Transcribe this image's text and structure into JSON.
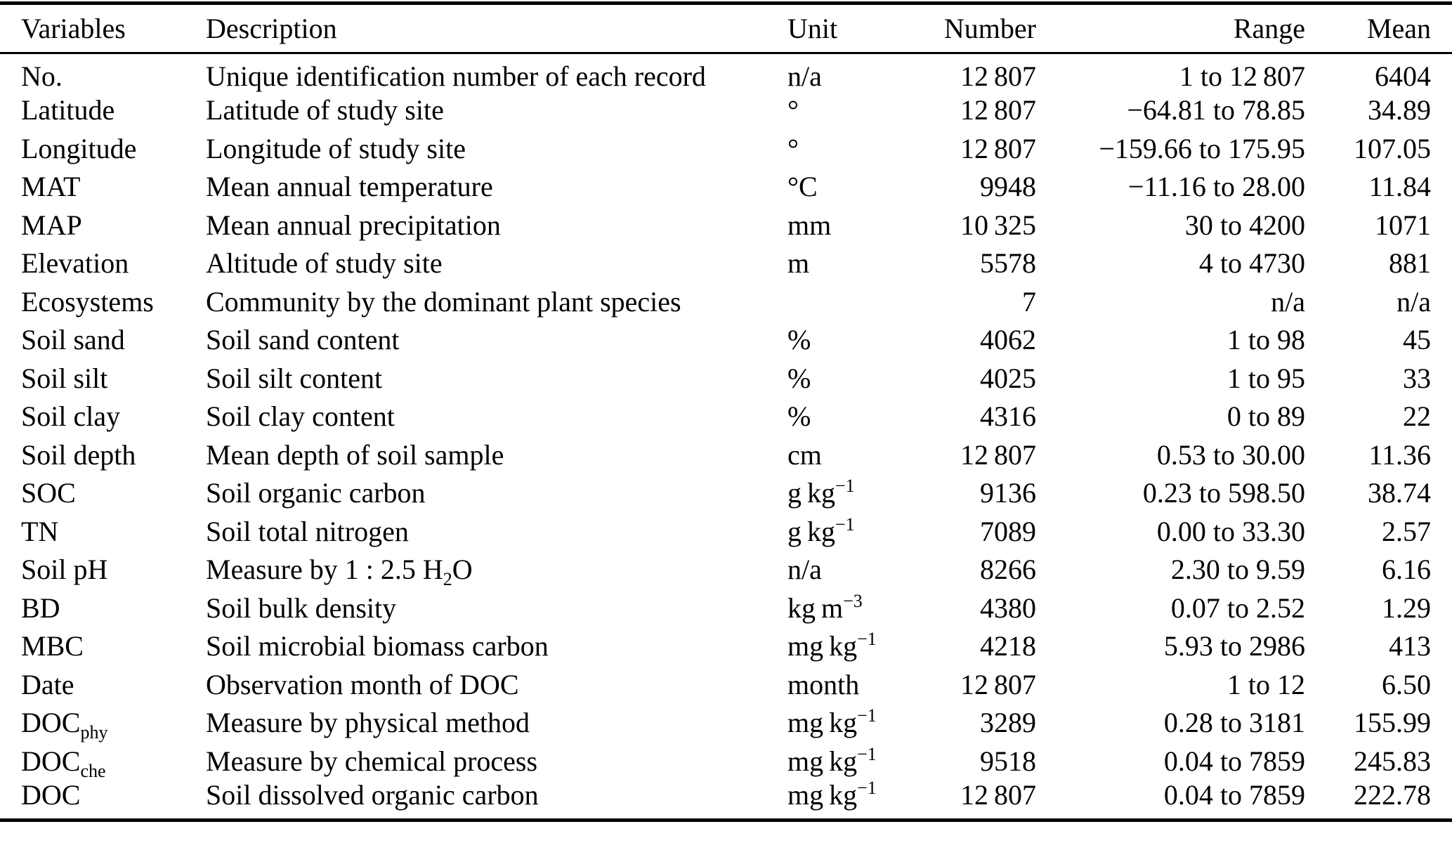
{
  "table": {
    "columns": [
      {
        "label": "Variables",
        "align": "left"
      },
      {
        "label": "Description",
        "align": "left"
      },
      {
        "label": "Unit",
        "align": "left"
      },
      {
        "label": "Number",
        "align": "right"
      },
      {
        "label": "Range",
        "align": "right"
      },
      {
        "label": "Mean",
        "align": "right"
      }
    ],
    "rows": [
      {
        "variable": "No.",
        "description": "Unique identification number of each record",
        "unit": "n/a",
        "number": "12 807",
        "range": "1 to 12 807",
        "mean": "6404"
      },
      {
        "variable": "Latitude",
        "description": "Latitude of study site",
        "unit": "°",
        "number": "12 807",
        "range": "−64.81 to 78.85",
        "mean": "34.89"
      },
      {
        "variable": "Longitude",
        "description": "Longitude of study site",
        "unit": "°",
        "number": "12 807",
        "range": "−159.66 to 175.95",
        "mean": "107.05"
      },
      {
        "variable": "MAT",
        "description": "Mean annual temperature",
        "unit": "°C",
        "number": "9948",
        "range": "−11.16 to 28.00",
        "mean": "11.84"
      },
      {
        "variable": "MAP",
        "description": "Mean annual precipitation",
        "unit": "mm",
        "number": "10 325",
        "range": "30 to 4200",
        "mean": "1071"
      },
      {
        "variable": "Elevation",
        "description": "Altitude of study site",
        "unit": "m",
        "number": "5578",
        "range": "4 to 4730",
        "mean": "881"
      },
      {
        "variable": "Ecosystems",
        "description": "Community by the dominant plant species",
        "unit": "",
        "number": "7",
        "range": "n/a",
        "mean": "n/a"
      },
      {
        "variable": "Soil sand",
        "description": "Soil sand content",
        "unit": "%",
        "number": "4062",
        "range": "1 to 98",
        "mean": "45"
      },
      {
        "variable": "Soil silt",
        "description": "Soil silt content",
        "unit": "%",
        "number": "4025",
        "range": "1 to 95",
        "mean": "33"
      },
      {
        "variable": "Soil clay",
        "description": "Soil clay content",
        "unit": "%",
        "number": "4316",
        "range": "0 to 89",
        "mean": "22"
      },
      {
        "variable": "Soil depth",
        "description": "Mean depth of soil sample",
        "unit": "cm",
        "number": "12 807",
        "range": "0.53 to 30.00",
        "mean": "11.36"
      },
      {
        "variable": "SOC",
        "description": "Soil organic carbon",
        "unit": [
          {
            "t": "g kg"
          },
          {
            "t": "−1",
            "s": "sup"
          }
        ],
        "number": "9136",
        "range": "0.23 to 598.50",
        "mean": "38.74"
      },
      {
        "variable": "TN",
        "description": "Soil total nitrogen",
        "unit": [
          {
            "t": "g kg"
          },
          {
            "t": "−1",
            "s": "sup"
          }
        ],
        "number": "7089",
        "range": "0.00 to 33.30",
        "mean": "2.57"
      },
      {
        "variable": "Soil pH",
        "description": [
          {
            "t": "Measure by 1 : 2.5 H"
          },
          {
            "t": "2",
            "s": "sub"
          },
          {
            "t": "O"
          }
        ],
        "unit": "n/a",
        "number": "8266",
        "range": "2.30 to 9.59",
        "mean": "6.16"
      },
      {
        "variable": "BD",
        "description": "Soil bulk density",
        "unit": [
          {
            "t": "kg m"
          },
          {
            "t": "−3",
            "s": "sup"
          }
        ],
        "number": "4380",
        "range": "0.07 to 2.52",
        "mean": "1.29"
      },
      {
        "variable": "MBC",
        "description": "Soil microbial biomass carbon",
        "unit": [
          {
            "t": "mg kg"
          },
          {
            "t": "−1",
            "s": "sup"
          }
        ],
        "number": "4218",
        "range": "5.93 to 2986",
        "mean": "413"
      },
      {
        "variable": "Date",
        "description": "Observation month of DOC",
        "unit": "month",
        "number": "12 807",
        "range": "1 to 12",
        "mean": "6.50"
      },
      {
        "variable": [
          {
            "t": "DOC"
          },
          {
            "t": "phy",
            "s": "sub"
          }
        ],
        "description": "Measure by physical method",
        "unit": [
          {
            "t": "mg kg"
          },
          {
            "t": "−1",
            "s": "sup"
          }
        ],
        "number": "3289",
        "range": "0.28 to 3181",
        "mean": "155.99"
      },
      {
        "variable": [
          {
            "t": "DOC"
          },
          {
            "t": "che",
            "s": "sub"
          }
        ],
        "description": "Measure by chemical process",
        "unit": [
          {
            "t": "mg kg"
          },
          {
            "t": "−1",
            "s": "sup"
          }
        ],
        "number": "9518",
        "range": "0.04 to 7859",
        "mean": "245.83"
      },
      {
        "variable": "DOC",
        "description": "Soil dissolved organic carbon",
        "unit": [
          {
            "t": "mg kg"
          },
          {
            "t": "−1",
            "s": "sup"
          }
        ],
        "number": "12 807",
        "range": "0.04 to 7859",
        "mean": "222.78"
      }
    ]
  }
}
